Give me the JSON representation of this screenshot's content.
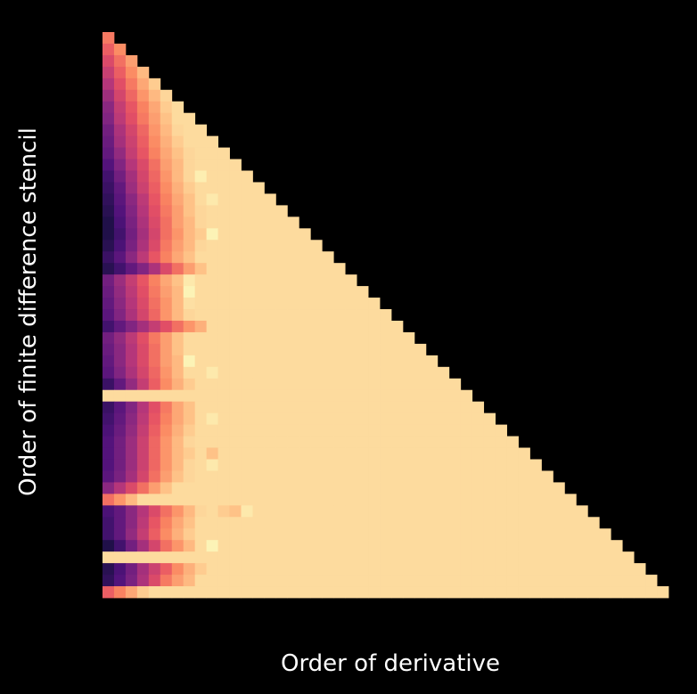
{
  "chart_data": {
    "type": "heatmap",
    "title": "",
    "xlabel": "Order of derivative",
    "ylabel": "Order of finite difference stencil",
    "colormap": "magma",
    "colorbar": false,
    "grid": false,
    "ticks": false,
    "shape": "lower-triangular",
    "n_orders": 49,
    "value_range": [
      0.0,
      1.0
    ],
    "saturated_value": 0.93,
    "highlight_value": 0.98,
    "rows": [
      [
        0.72
      ],
      [
        0.66,
        0.76
      ],
      [
        0.6,
        0.7,
        0.8
      ],
      [
        0.55,
        0.66,
        0.76,
        0.86
      ],
      [
        0.5,
        0.62,
        0.72,
        0.82,
        0.9
      ],
      [
        0.45,
        0.58,
        0.68,
        0.78,
        0.86,
        0.92
      ],
      [
        0.4,
        0.54,
        0.64,
        0.74,
        0.82,
        0.9,
        0.93
      ],
      [
        0.38,
        0.52,
        0.62,
        0.72,
        0.8,
        0.88,
        0.93,
        0.93
      ],
      [
        0.34,
        0.48,
        0.58,
        0.68,
        0.78,
        0.86,
        0.92,
        0.93,
        0.93
      ],
      [
        0.32,
        0.46,
        0.56,
        0.66,
        0.76,
        0.84,
        0.9,
        0.93,
        0.93,
        0.93
      ],
      [
        0.3,
        0.42,
        0.54,
        0.64,
        0.74,
        0.82,
        0.88,
        0.92,
        0.93,
        0.93,
        0.93
      ],
      [
        0.26,
        0.38,
        0.5,
        0.6,
        0.7,
        0.8,
        0.86,
        0.92,
        0.93,
        0.93,
        0.93,
        0.93
      ],
      [
        0.22,
        0.34,
        0.46,
        0.58,
        0.68,
        0.78,
        0.86,
        0.92,
        0.97,
        0.93,
        0.93,
        0.93,
        0.93
      ],
      [
        0.2,
        0.3,
        0.44,
        0.56,
        0.66,
        0.76,
        0.84,
        0.9,
        0.93,
        0.93,
        0.93,
        0.93,
        0.93,
        0.93
      ],
      [
        0.18,
        0.28,
        0.4,
        0.52,
        0.64,
        0.74,
        0.82,
        0.88,
        0.93,
        0.96,
        0.93,
        0.93,
        0.93,
        0.93,
        0.93
      ],
      [
        0.16,
        0.26,
        0.38,
        0.5,
        0.62,
        0.72,
        0.8,
        0.88,
        0.92,
        0.93,
        0.93,
        0.93,
        0.93,
        0.93,
        0.93,
        0.93
      ],
      [
        0.14,
        0.24,
        0.36,
        0.48,
        0.6,
        0.7,
        0.8,
        0.86,
        0.92,
        0.93,
        0.93,
        0.93,
        0.93,
        0.93,
        0.93,
        0.93,
        0.93
      ],
      [
        0.14,
        0.22,
        0.34,
        0.46,
        0.58,
        0.7,
        0.78,
        0.86,
        0.9,
        0.98,
        0.93,
        0.93,
        0.93,
        0.93,
        0.93,
        0.93,
        0.93,
        0.93
      ],
      [
        0.16,
        0.24,
        0.36,
        0.48,
        0.6,
        0.72,
        0.8,
        0.86,
        0.92,
        0.93,
        0.93,
        0.93,
        0.93,
        0.93,
        0.93,
        0.93,
        0.93,
        0.93,
        0.93
      ],
      [
        0.2,
        0.28,
        0.4,
        0.52,
        0.64,
        0.74,
        0.82,
        0.88,
        0.93,
        0.93,
        0.93,
        0.93,
        0.93,
        0.93,
        0.93,
        0.93,
        0.93,
        0.93,
        0.93,
        0.93
      ],
      [
        0.16,
        0.22,
        0.3,
        0.38,
        0.48,
        0.6,
        0.7,
        0.8,
        0.88,
        0.93,
        0.93,
        0.93,
        0.93,
        0.93,
        0.93,
        0.93,
        0.93,
        0.93,
        0.93,
        0.93,
        0.93
      ],
      [
        0.34,
        0.44,
        0.54,
        0.64,
        0.74,
        0.82,
        0.88,
        0.96,
        0.93,
        0.93,
        0.93,
        0.93,
        0.93,
        0.93,
        0.93,
        0.93,
        0.93,
        0.93,
        0.93,
        0.93,
        0.93,
        0.93
      ],
      [
        0.32,
        0.42,
        0.52,
        0.62,
        0.72,
        0.8,
        0.86,
        0.98,
        0.93,
        0.93,
        0.93,
        0.93,
        0.93,
        0.93,
        0.93,
        0.93,
        0.93,
        0.93,
        0.93,
        0.93,
        0.93,
        0.93,
        0.93
      ],
      [
        0.3,
        0.4,
        0.5,
        0.6,
        0.7,
        0.78,
        0.86,
        0.94,
        0.93,
        0.93,
        0.93,
        0.93,
        0.93,
        0.93,
        0.93,
        0.93,
        0.93,
        0.93,
        0.93,
        0.93,
        0.93,
        0.93,
        0.93,
        0.93
      ],
      [
        0.28,
        0.38,
        0.48,
        0.58,
        0.68,
        0.78,
        0.86,
        0.92,
        0.93,
        0.93,
        0.93,
        0.93,
        0.93,
        0.93,
        0.93,
        0.93,
        0.93,
        0.93,
        0.93,
        0.93,
        0.93,
        0.93,
        0.93,
        0.93,
        0.93
      ],
      [
        0.22,
        0.3,
        0.38,
        0.46,
        0.54,
        0.62,
        0.7,
        0.78,
        0.84,
        0.93,
        0.93,
        0.93,
        0.93,
        0.93,
        0.93,
        0.93,
        0.93,
        0.93,
        0.93,
        0.93,
        0.93,
        0.93,
        0.93,
        0.93,
        0.93,
        0.93
      ],
      [
        0.34,
        0.42,
        0.52,
        0.62,
        0.72,
        0.8,
        0.88,
        0.93,
        0.93,
        0.93,
        0.93,
        0.93,
        0.93,
        0.93,
        0.93,
        0.93,
        0.93,
        0.93,
        0.93,
        0.93,
        0.93,
        0.93,
        0.93,
        0.93,
        0.93,
        0.93,
        0.93
      ],
      [
        0.32,
        0.4,
        0.5,
        0.6,
        0.7,
        0.8,
        0.88,
        0.93,
        0.93,
        0.93,
        0.93,
        0.93,
        0.93,
        0.93,
        0.93,
        0.93,
        0.93,
        0.93,
        0.93,
        0.93,
        0.93,
        0.93,
        0.93,
        0.93,
        0.93,
        0.93,
        0.93,
        0.93
      ],
      [
        0.3,
        0.4,
        0.5,
        0.6,
        0.7,
        0.8,
        0.86,
        0.98,
        0.93,
        0.93,
        0.93,
        0.93,
        0.93,
        0.93,
        0.93,
        0.93,
        0.93,
        0.93,
        0.93,
        0.93,
        0.93,
        0.93,
        0.93,
        0.93,
        0.93,
        0.93,
        0.93,
        0.93,
        0.93
      ],
      [
        0.28,
        0.38,
        0.48,
        0.58,
        0.68,
        0.78,
        0.86,
        0.93,
        0.93,
        0.96,
        0.93,
        0.93,
        0.93,
        0.93,
        0.93,
        0.93,
        0.93,
        0.93,
        0.93,
        0.93,
        0.93,
        0.93,
        0.93,
        0.93,
        0.93,
        0.93,
        0.93,
        0.93,
        0.93,
        0.93
      ],
      [
        0.2,
        0.3,
        0.42,
        0.54,
        0.66,
        0.76,
        0.84,
        0.9,
        0.93,
        0.93,
        0.93,
        0.93,
        0.93,
        0.93,
        0.93,
        0.93,
        0.93,
        0.93,
        0.93,
        0.93,
        0.93,
        0.93,
        0.93,
        0.93,
        0.93,
        0.93,
        0.93,
        0.93,
        0.93,
        0.93,
        0.93
      ],
      [
        0.93,
        0.93,
        0.93,
        0.93,
        0.93,
        0.93,
        0.93,
        0.93,
        0.93,
        0.93,
        0.93,
        0.93,
        0.93,
        0.93,
        0.93,
        0.93,
        0.93,
        0.93,
        0.93,
        0.93,
        0.93,
        0.93,
        0.93,
        0.93,
        0.93,
        0.93,
        0.93,
        0.93,
        0.93,
        0.93,
        0.93,
        0.93
      ],
      [
        0.2,
        0.28,
        0.38,
        0.5,
        0.62,
        0.72,
        0.82,
        0.88,
        0.93,
        0.93,
        0.93,
        0.93,
        0.93,
        0.93,
        0.93,
        0.93,
        0.93,
        0.93,
        0.93,
        0.93,
        0.93,
        0.93,
        0.93,
        0.93,
        0.93,
        0.93,
        0.93,
        0.93,
        0.93,
        0.93,
        0.93,
        0.93,
        0.93
      ],
      [
        0.22,
        0.3,
        0.4,
        0.52,
        0.64,
        0.74,
        0.82,
        0.88,
        0.93,
        0.96,
        0.93,
        0.93,
        0.93,
        0.93,
        0.93,
        0.93,
        0.93,
        0.93,
        0.93,
        0.93,
        0.93,
        0.93,
        0.93,
        0.93,
        0.93,
        0.93,
        0.93,
        0.93,
        0.93,
        0.93,
        0.93,
        0.93,
        0.93,
        0.93
      ],
      [
        0.24,
        0.32,
        0.42,
        0.54,
        0.66,
        0.76,
        0.84,
        0.9,
        0.93,
        0.93,
        0.93,
        0.93,
        0.93,
        0.93,
        0.93,
        0.93,
        0.93,
        0.93,
        0.93,
        0.93,
        0.93,
        0.93,
        0.93,
        0.93,
        0.93,
        0.93,
        0.93,
        0.93,
        0.93,
        0.93,
        0.93,
        0.93,
        0.93,
        0.93,
        0.93
      ],
      [
        0.26,
        0.34,
        0.44,
        0.56,
        0.68,
        0.78,
        0.86,
        0.92,
        0.93,
        0.93,
        0.93,
        0.93,
        0.93,
        0.93,
        0.93,
        0.93,
        0.93,
        0.93,
        0.93,
        0.93,
        0.93,
        0.93,
        0.93,
        0.93,
        0.93,
        0.93,
        0.93,
        0.93,
        0.93,
        0.93,
        0.93,
        0.93,
        0.93,
        0.93,
        0.93,
        0.93
      ],
      [
        0.26,
        0.34,
        0.44,
        0.56,
        0.68,
        0.78,
        0.86,
        0.9,
        0.93,
        0.88,
        0.93,
        0.93,
        0.93,
        0.93,
        0.93,
        0.93,
        0.93,
        0.93,
        0.93,
        0.93,
        0.93,
        0.93,
        0.93,
        0.93,
        0.93,
        0.93,
        0.93,
        0.93,
        0.93,
        0.93,
        0.93,
        0.93,
        0.93,
        0.93,
        0.93,
        0.93,
        0.93
      ],
      [
        0.26,
        0.34,
        0.44,
        0.56,
        0.68,
        0.78,
        0.86,
        0.92,
        0.93,
        0.96,
        0.93,
        0.93,
        0.93,
        0.93,
        0.93,
        0.93,
        0.93,
        0.93,
        0.93,
        0.93,
        0.93,
        0.93,
        0.93,
        0.93,
        0.93,
        0.93,
        0.93,
        0.93,
        0.93,
        0.93,
        0.93,
        0.93,
        0.93,
        0.93,
        0.93,
        0.93,
        0.93,
        0.93
      ],
      [
        0.28,
        0.36,
        0.46,
        0.58,
        0.7,
        0.8,
        0.88,
        0.92,
        0.93,
        0.93,
        0.93,
        0.93,
        0.93,
        0.93,
        0.93,
        0.93,
        0.93,
        0.93,
        0.93,
        0.93,
        0.93,
        0.93,
        0.93,
        0.93,
        0.93,
        0.93,
        0.93,
        0.93,
        0.93,
        0.93,
        0.93,
        0.93,
        0.93,
        0.93,
        0.93,
        0.93,
        0.93,
        0.93,
        0.93
      ],
      [
        0.4,
        0.5,
        0.6,
        0.7,
        0.8,
        0.88,
        0.93,
        0.93,
        0.93,
        0.93,
        0.93,
        0.93,
        0.93,
        0.93,
        0.93,
        0.93,
        0.93,
        0.93,
        0.93,
        0.93,
        0.93,
        0.93,
        0.93,
        0.93,
        0.93,
        0.93,
        0.93,
        0.93,
        0.93,
        0.93,
        0.93,
        0.93,
        0.93,
        0.93,
        0.93,
        0.93,
        0.93,
        0.93,
        0.93,
        0.93
      ],
      [
        0.7,
        0.78,
        0.86,
        0.93,
        0.93,
        0.93,
        0.93,
        0.93,
        0.93,
        0.93,
        0.93,
        0.93,
        0.93,
        0.93,
        0.93,
        0.93,
        0.93,
        0.93,
        0.93,
        0.93,
        0.93,
        0.93,
        0.93,
        0.93,
        0.93,
        0.93,
        0.93,
        0.93,
        0.93,
        0.93,
        0.93,
        0.93,
        0.93,
        0.93,
        0.93,
        0.93,
        0.93,
        0.93,
        0.93,
        0.93,
        0.93
      ],
      [
        0.24,
        0.3,
        0.4,
        0.5,
        0.6,
        0.7,
        0.78,
        0.86,
        0.92,
        0.93,
        0.9,
        0.88,
        0.96,
        0.93,
        0.93,
        0.93,
        0.93,
        0.93,
        0.93,
        0.93,
        0.93,
        0.93,
        0.93,
        0.93,
        0.93,
        0.93,
        0.93,
        0.93,
        0.93,
        0.93,
        0.93,
        0.93,
        0.93,
        0.93,
        0.93,
        0.93,
        0.93,
        0.93,
        0.93,
        0.93,
        0.93,
        0.93
      ],
      [
        0.22,
        0.3,
        0.4,
        0.52,
        0.64,
        0.74,
        0.82,
        0.88,
        0.93,
        0.93,
        0.93,
        0.93,
        0.93,
        0.93,
        0.93,
        0.93,
        0.93,
        0.93,
        0.93,
        0.93,
        0.93,
        0.93,
        0.93,
        0.93,
        0.93,
        0.93,
        0.93,
        0.93,
        0.93,
        0.93,
        0.93,
        0.93,
        0.93,
        0.93,
        0.93,
        0.93,
        0.93,
        0.93,
        0.93,
        0.93,
        0.93,
        0.93,
        0.93
      ],
      [
        0.22,
        0.3,
        0.42,
        0.54,
        0.66,
        0.76,
        0.84,
        0.9,
        0.93,
        0.93,
        0.93,
        0.93,
        0.93,
        0.93,
        0.93,
        0.93,
        0.93,
        0.93,
        0.93,
        0.93,
        0.93,
        0.93,
        0.93,
        0.93,
        0.93,
        0.93,
        0.93,
        0.93,
        0.93,
        0.93,
        0.93,
        0.93,
        0.93,
        0.93,
        0.93,
        0.93,
        0.93,
        0.93,
        0.93,
        0.93,
        0.93,
        0.93,
        0.93,
        0.93
      ],
      [
        0.14,
        0.22,
        0.34,
        0.46,
        0.58,
        0.7,
        0.78,
        0.86,
        0.93,
        0.98,
        0.93,
        0.93,
        0.93,
        0.93,
        0.93,
        0.93,
        0.93,
        0.93,
        0.93,
        0.93,
        0.93,
        0.93,
        0.93,
        0.93,
        0.93,
        0.93,
        0.93,
        0.93,
        0.93,
        0.93,
        0.93,
        0.93,
        0.93,
        0.93,
        0.93,
        0.93,
        0.93,
        0.93,
        0.93,
        0.93,
        0.93,
        0.93,
        0.93,
        0.93,
        0.93
      ],
      [
        0.93,
        0.93,
        0.93,
        0.93,
        0.93,
        0.93,
        0.93,
        0.93,
        0.93,
        0.93,
        0.93,
        0.93,
        0.93,
        0.93,
        0.93,
        0.93,
        0.93,
        0.93,
        0.93,
        0.93,
        0.93,
        0.93,
        0.93,
        0.93,
        0.93,
        0.93,
        0.93,
        0.93,
        0.93,
        0.93,
        0.93,
        0.93,
        0.93,
        0.93,
        0.93,
        0.93,
        0.93,
        0.93,
        0.93,
        0.93,
        0.93,
        0.93,
        0.93,
        0.93,
        0.93,
        0.93
      ],
      [
        0.16,
        0.24,
        0.34,
        0.46,
        0.56,
        0.66,
        0.76,
        0.84,
        0.9,
        0.93,
        0.93,
        0.93,
        0.93,
        0.93,
        0.93,
        0.93,
        0.93,
        0.93,
        0.93,
        0.93,
        0.93,
        0.93,
        0.93,
        0.93,
        0.93,
        0.93,
        0.93,
        0.93,
        0.93,
        0.93,
        0.93,
        0.93,
        0.93,
        0.93,
        0.93,
        0.93,
        0.93,
        0.93,
        0.93,
        0.93,
        0.93,
        0.93,
        0.93,
        0.93,
        0.93,
        0.93,
        0.93
      ],
      [
        0.18,
        0.26,
        0.36,
        0.48,
        0.6,
        0.72,
        0.8,
        0.86,
        0.93,
        0.93,
        0.93,
        0.93,
        0.93,
        0.93,
        0.93,
        0.93,
        0.93,
        0.93,
        0.93,
        0.93,
        0.93,
        0.93,
        0.93,
        0.93,
        0.93,
        0.93,
        0.93,
        0.93,
        0.93,
        0.93,
        0.93,
        0.93,
        0.93,
        0.93,
        0.93,
        0.93,
        0.93,
        0.93,
        0.93,
        0.93,
        0.93,
        0.93,
        0.93,
        0.93,
        0.93,
        0.93,
        0.93,
        0.93
      ],
      [
        0.66,
        0.74,
        0.82,
        0.9,
        0.93,
        0.93,
        0.93,
        0.93,
        0.93,
        0.93,
        0.93,
        0.93,
        0.93,
        0.93,
        0.93,
        0.93,
        0.93,
        0.93,
        0.93,
        0.93,
        0.93,
        0.93,
        0.93,
        0.93,
        0.93,
        0.93,
        0.93,
        0.93,
        0.93,
        0.93,
        0.93,
        0.93,
        0.93,
        0.93,
        0.93,
        0.93,
        0.93,
        0.93,
        0.93,
        0.93,
        0.93,
        0.93,
        0.93,
        0.93,
        0.93,
        0.93,
        0.93,
        0.93,
        0.93
      ]
    ]
  }
}
